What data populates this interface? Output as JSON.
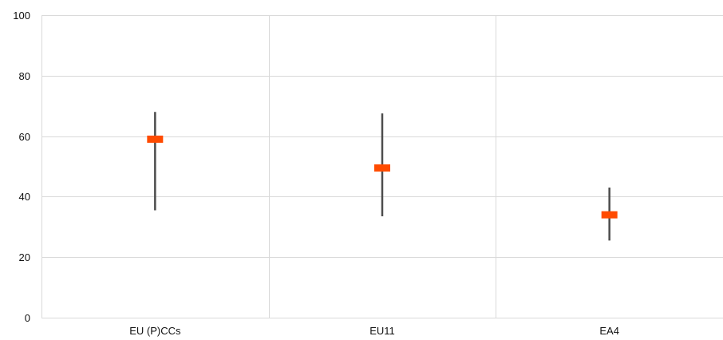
{
  "chart_data": {
    "type": "range",
    "title": "",
    "xlabel": "",
    "ylabel": "",
    "categories": [
      "EU (P)CCs",
      "EU11",
      "EA4"
    ],
    "ylim": [
      0,
      100
    ],
    "yticks": [
      0,
      20,
      40,
      60,
      80,
      100
    ],
    "series": [
      {
        "kind": "range",
        "low": [
          35.5,
          33.5,
          25.5
        ],
        "high": [
          68.0,
          67.5,
          43.0
        ]
      },
      {
        "kind": "point",
        "values": [
          59.0,
          49.5,
          34.0
        ]
      }
    ],
    "grid": {
      "horizontal": true,
      "vertical": true
    },
    "legend": "none",
    "colors": {
      "range": "#4d4d4d",
      "point": "#ff4b00",
      "grid": "#d9d9d9",
      "text": "#111111"
    }
  }
}
